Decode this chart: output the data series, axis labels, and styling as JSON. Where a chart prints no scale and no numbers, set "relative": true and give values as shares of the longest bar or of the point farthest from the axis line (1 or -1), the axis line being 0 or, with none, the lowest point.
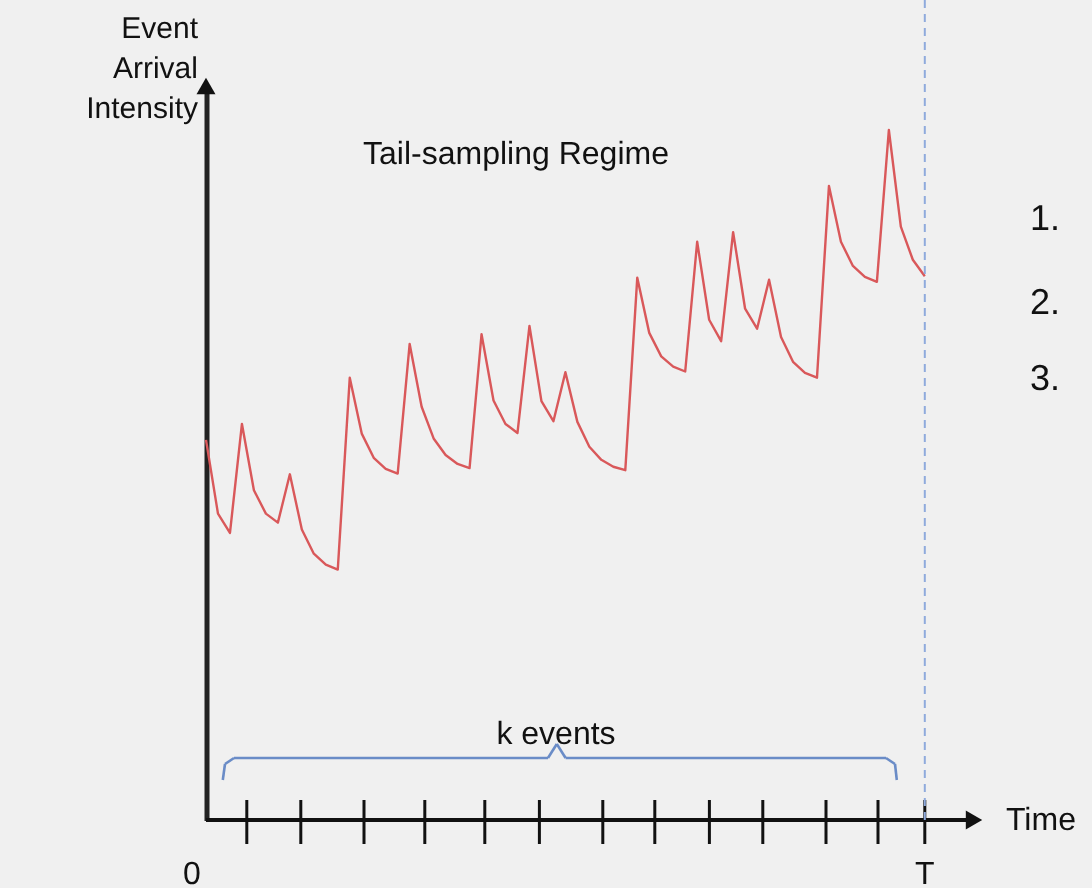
{
  "chart_data": {
    "type": "line",
    "title": "Tail-sampling Regime",
    "xlabel": "Time",
    "ylabel": "Event Arrival Intensity",
    "relative": true,
    "categories": [
      null,
      null,
      null,
      null,
      null,
      null,
      null,
      null,
      null,
      null,
      null,
      null,
      null,
      null,
      null,
      null,
      null,
      null,
      null,
      null,
      null,
      null,
      null,
      null,
      null,
      null,
      null,
      null,
      null,
      null,
      null,
      null,
      null,
      null,
      null,
      null,
      null,
      null,
      null,
      null,
      null,
      null,
      null,
      null,
      null,
      null,
      null,
      null,
      null,
      null,
      null,
      null,
      null,
      null,
      null,
      null,
      null,
      null,
      null,
      null,
      null
    ],
    "series": [
      {
        "color": "#d9585a",
        "values": [
          0.551,
          0.444,
          0.416,
          0.574,
          0.478,
          0.444,
          0.431,
          0.501,
          0.421,
          0.386,
          0.37,
          0.363,
          0.641,
          0.56,
          0.525,
          0.509,
          0.502,
          0.69,
          0.599,
          0.553,
          0.529,
          0.516,
          0.51,
          0.704,
          0.608,
          0.574,
          0.561,
          0.716,
          0.607,
          0.578,
          0.649,
          0.577,
          0.541,
          0.522,
          0.512,
          0.507,
          0.786,
          0.706,
          0.672,
          0.657,
          0.65,
          0.838,
          0.725,
          0.694,
          0.852,
          0.741,
          0.712,
          0.783,
          0.7,
          0.664,
          0.648,
          0.641,
          0.919,
          0.838,
          0.803,
          0.787,
          0.78,
          1,
          0.86,
          0.812,
          0.788
        ]
      }
    ],
    "ref_lines": [
      {
        "axis": "x",
        "color": "#8faadc",
        "line_style": "dashed"
      }
    ],
    "annotations": [
      "k events",
      "1.",
      "2.",
      "3.",
      "0",
      "T"
    ],
    "grid": false,
    "marker": "none",
    "line_style": "solid"
  }
}
